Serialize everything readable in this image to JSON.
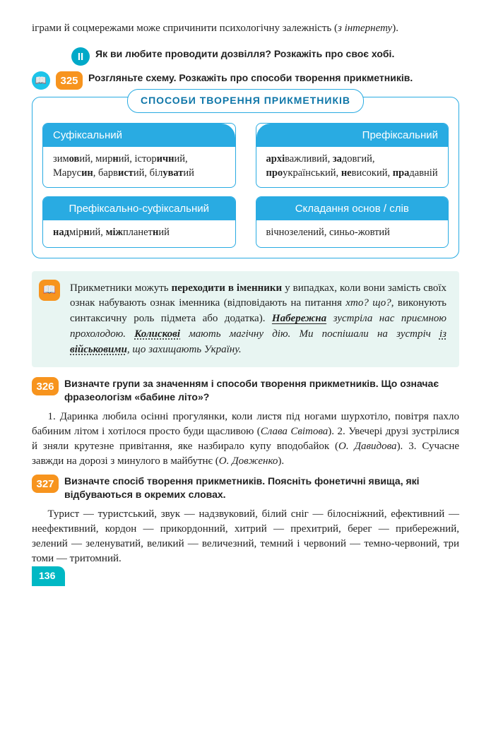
{
  "intro": {
    "text_pre": "іграми й соцмережами може спричинити психологічну залежність (",
    "text_it": "з інтернету",
    "text_post": ")."
  },
  "taskII": {
    "badge": "II",
    "text": "Як ви любите проводити дозвілля? Розкажіть про своє хобі."
  },
  "task325": {
    "num": "325",
    "icon": "📖",
    "text": "Розгляньте схему. Розкажіть про способи творення прикметників."
  },
  "schema": {
    "title": "СПОСОБИ  ТВОРЕННЯ  ПРИКМЕТНИКІВ",
    "cells": [
      {
        "head": "Суфіксальний",
        "align": "left",
        "body": "зим<b>ов</b>ий, мир<b>н</b>ий, істор<b>ичн</b>ий, Марус<b>ин</b>, барв<b>ист</b>ий, біл<b>уват</b>ий"
      },
      {
        "head": "Префіксальний",
        "align": "right",
        "body": "<b>архі</b>важливий, <b>за</b>довгий, <b>про</b>український, <b>не</b>високий, <b>пра</b>давній"
      },
      {
        "head": "Префіксально-суфіксальний",
        "align": "center",
        "body": "<b>над</b>мір<b>н</b>ий, <b>між</b>планет<b>н</b>ий"
      },
      {
        "head": "Складання основ / слів",
        "align": "center",
        "body": "вічнозелений, синьо-жовтий"
      }
    ]
  },
  "callout": {
    "icon": "📖",
    "html": "Прикметники можуть <b>переходити в іменники</b> у випадках, коли вони замість своїх ознак набувають ознак іменника (відповідають на питання <i>хто? що?</i>, виконують синтаксичну роль підмета або додатка). <i><b><span class='u-solid'>Набережна</span></b> зустріла нас приємною прохолодою. <b><span class='u-dot'>Колискові</span></b> мають магічну дію. Ми поспішали на зустріч <span class='u-dot'>із <b>військовими</b></span>, що захищають Україну.</i>"
  },
  "task326": {
    "num": "326",
    "text": "Визначте групи за значенням і способи творення прикметників. Що означає фразеологізм «бабине літо»?"
  },
  "body326": "1. Даринка любила осінні прогулянки, коли листя під ногами шурхотіло, повітря пахло бабиним літом і хотілося просто буди щасливою (<i>Слава Світова</i>). 2. Увечері друзі зустрілися й зняли крутезне привітання, яке назбирало купу вподобайок (<i>О. Давидова</i>). 3. Сучасне завжди на дорозі з минулого в майбутнє (<i>О. Довженко</i>).",
  "task327": {
    "num": "327",
    "text": "Визначте спосіб творення прикметників. Поясніть фонетичні явища, які відбуваються в окремих словах."
  },
  "body327": "Турист — туристський, звук — надзвуковий, білий сніг — білосніжний, ефективний — неефективний, кордон — прикордонний, хитрий — прехитрий, берег — прибережний, зелений — зеленуватий, великий — величезний, темний і червоний — темно-червоний, три томи — тритомний.",
  "pageNum": "136",
  "colors": {
    "accent_blue": "#29abe2",
    "accent_orange": "#f7941e",
    "accent_teal": "#00b8c4",
    "callout_bg": "#e8f5f2"
  }
}
